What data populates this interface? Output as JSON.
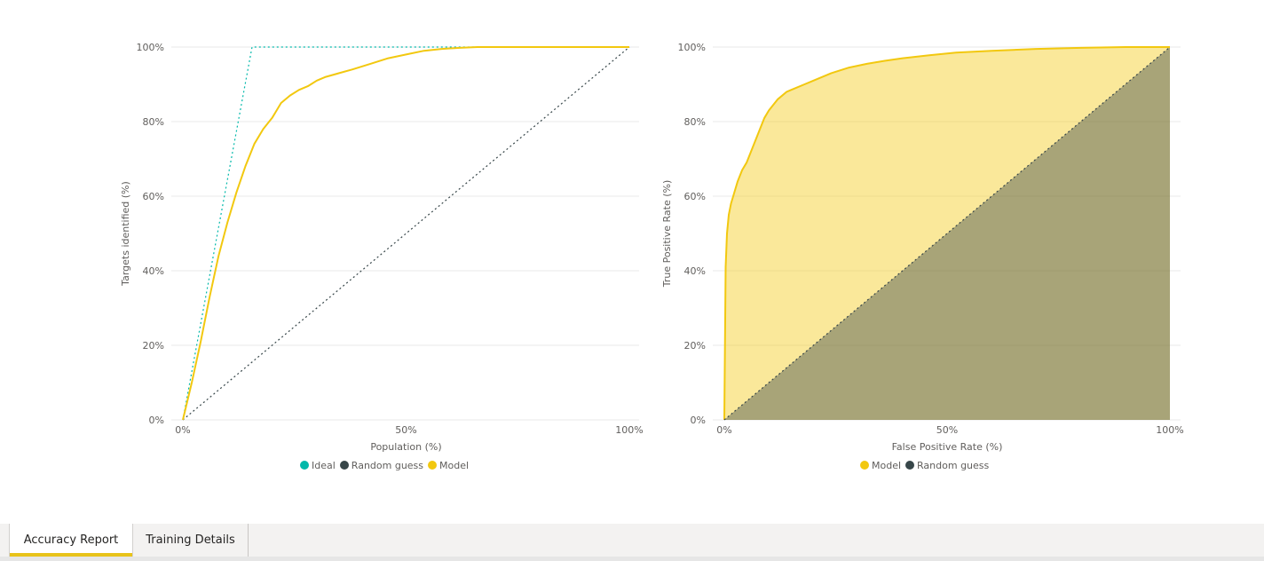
{
  "chart_data": [
    {
      "type": "line",
      "title": "",
      "xlabel": "Population (%)",
      "ylabel": "Targets identified (%)",
      "xlim": [
        0,
        100
      ],
      "ylim": [
        0,
        100
      ],
      "x_ticks": [
        "0%",
        "50%",
        "100%"
      ],
      "y_ticks": [
        "0%",
        "20%",
        "40%",
        "60%",
        "80%",
        "100%"
      ],
      "grid": true,
      "legend_position": "bottom-center",
      "series": [
        {
          "name": "Ideal",
          "color": "#01b8aa",
          "style": "dotted",
          "x": [
            0,
            15.5,
            100
          ],
          "y": [
            0,
            100,
            100
          ]
        },
        {
          "name": "Random guess",
          "color": "#374649",
          "style": "dotted",
          "x": [
            0,
            100
          ],
          "y": [
            0,
            100
          ]
        },
        {
          "name": "Model",
          "color": "#f2c80f",
          "style": "solid",
          "x": [
            0,
            2,
            4,
            6,
            8,
            10,
            12,
            14,
            16,
            18,
            20,
            22,
            24,
            26,
            28,
            30,
            32,
            35,
            38,
            42,
            46,
            50,
            54,
            58,
            62,
            66,
            70,
            80,
            90,
            100
          ],
          "y": [
            0,
            10,
            21,
            33,
            44,
            53,
            61,
            68,
            74,
            78,
            81,
            85,
            87,
            88.5,
            89.5,
            91,
            92,
            93,
            94,
            95.5,
            97,
            98,
            99,
            99.5,
            99.8,
            100,
            100,
            100,
            100,
            100
          ]
        }
      ]
    },
    {
      "type": "area",
      "title": "",
      "xlabel": "False Positive Rate (%)",
      "ylabel": "True Positive Rate (%)",
      "xlim": [
        0,
        100
      ],
      "ylim": [
        0,
        100
      ],
      "x_ticks": [
        "0%",
        "50%",
        "100%"
      ],
      "y_ticks": [
        "0%",
        "20%",
        "40%",
        "60%",
        "80%",
        "100%"
      ],
      "grid": true,
      "legend_position": "bottom-center",
      "series": [
        {
          "name": "Model",
          "color": "#f2c80f",
          "style": "solid",
          "x": [
            0,
            0.3,
            0.6,
            1,
            1.5,
            2,
            3,
            4,
            5,
            6,
            7,
            8,
            9,
            10,
            12,
            14,
            16,
            18,
            20,
            24,
            28,
            32,
            36,
            40,
            46,
            52,
            60,
            70,
            80,
            90,
            100
          ],
          "y": [
            0,
            41,
            50,
            55,
            58,
            60,
            64,
            67,
            69,
            72,
            75,
            78,
            81,
            83,
            86,
            88,
            89,
            90,
            91,
            93,
            94.5,
            95.5,
            96.3,
            97,
            97.8,
            98.5,
            99,
            99.5,
            99.8,
            100,
            100
          ]
        },
        {
          "name": "Random guess",
          "color": "#374649",
          "style": "dotted",
          "x": [
            0,
            100
          ],
          "y": [
            0,
            100
          ]
        }
      ]
    }
  ],
  "tabs": [
    {
      "label": "Accuracy Report",
      "active": true
    },
    {
      "label": "Training Details",
      "active": false
    }
  ]
}
